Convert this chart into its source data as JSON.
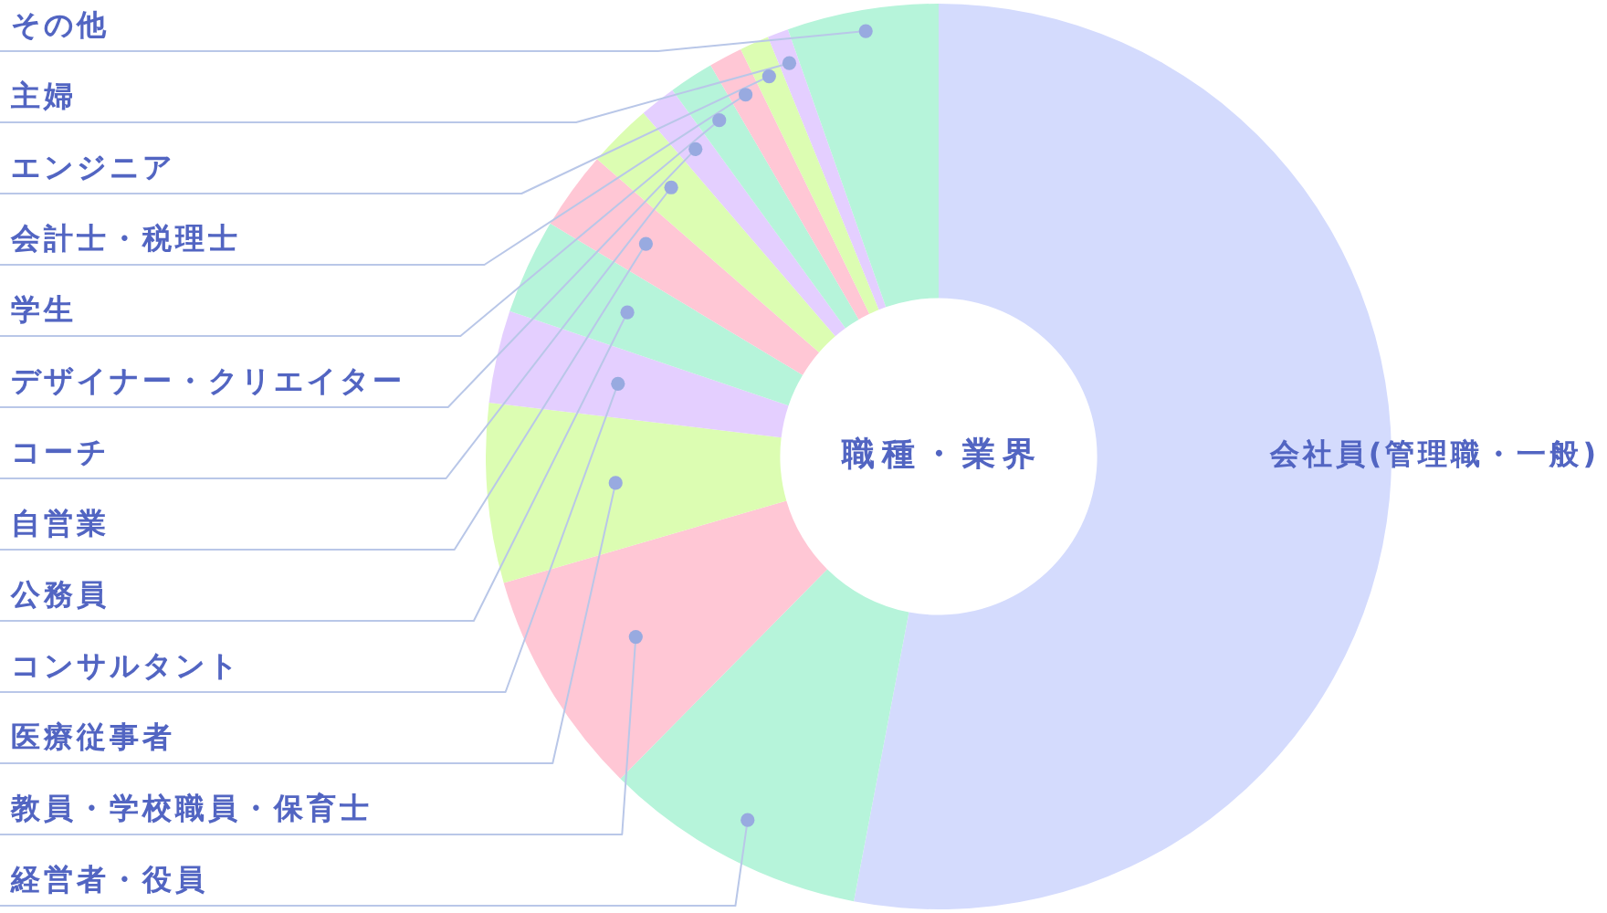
{
  "chart_data": {
    "type": "donut",
    "title": "職種・業界",
    "categories": [
      "会社員(管理職・一般)",
      "経営者・役員",
      "教員・学校職員・保育士",
      "医療従事者",
      "コンサルタント",
      "公務員",
      "自営業",
      "コーチ",
      "デザイナー・クリエイター",
      "学生",
      "会計士・税理士",
      "エンジニア",
      "主婦",
      "その他"
    ],
    "values": [
      53.0,
      9.4,
      8.1,
      6.4,
      3.3,
      3.4,
      2.8,
      2.3,
      1.3,
      1.6,
      1.2,
      1.05,
      0.75,
      5.4
    ],
    "colors": [
      "#d4dbfd",
      "#b6f4da",
      "#ffc7d5",
      "#dcfdb2",
      "#e4cfff",
      "#b6f4da",
      "#ffc7d5",
      "#dcfdb2",
      "#e4cfff",
      "#b6f4da",
      "#ffc7d5",
      "#dcfdb2",
      "#e4cfff",
      "#b6f4da"
    ]
  }
}
